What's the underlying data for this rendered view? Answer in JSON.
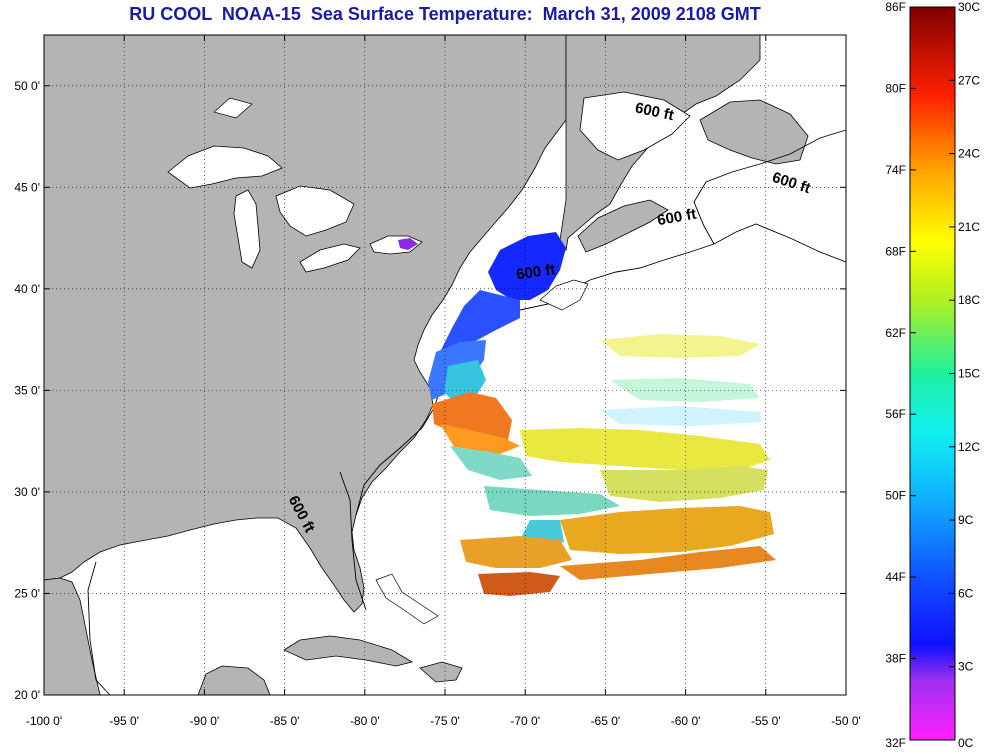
{
  "title": "RU COOL  NOAA-15  Sea Surface Temperature:  March 31, 2009 2108 GMT",
  "colors": {
    "title": "#1a1aa8",
    "land": "#b4b4b4",
    "ocean": "#ffffff",
    "frame": "#000000"
  },
  "map": {
    "lon_range": [
      -100,
      -50
    ],
    "lat_range": [
      20,
      52.5
    ],
    "lon_ticks": [
      -100,
      -95,
      -90,
      -85,
      -80,
      -75,
      -70,
      -65,
      -60,
      -55,
      -50
    ],
    "lat_ticks": [
      20,
      25,
      30,
      35,
      40,
      45,
      50
    ],
    "lon_tick_labels": [
      "-100 0'",
      "-95 0'",
      "-90 0'",
      "-85 0'",
      "-80 0'",
      "-75 0'",
      "-70 0'",
      "-65 0'",
      "-60 0'",
      "-55 0'",
      "-50 0'"
    ],
    "lat_tick_labels": [
      "20 0'",
      "25 0'",
      "30 0'",
      "35 0'",
      "40 0'",
      "45 0'",
      "50 0'"
    ],
    "grid": "dotted"
  },
  "isobath_labels": [
    {
      "text": "600 ft",
      "lon": -62.0,
      "lat": 48.5,
      "angle": 12
    },
    {
      "text": "600 ft",
      "lon": -53.5,
      "lat": 45.0,
      "angle": 18
    },
    {
      "text": "600 ft",
      "lon": -60.5,
      "lat": 43.3,
      "angle": -10
    },
    {
      "text": "600 ft",
      "lon": -69.3,
      "lat": 40.6,
      "angle": -8
    },
    {
      "text": "600 ft",
      "lon": -84.2,
      "lat": 28.8,
      "angle": 62
    }
  ],
  "colorbar": {
    "celsius_labels": [
      "0C",
      "3C",
      "6C",
      "9C",
      "12C",
      "15C",
      "18C",
      "21C",
      "24C",
      "27C",
      "30C"
    ],
    "fahrenheit_labels": [
      "32F",
      "38F",
      "44F",
      "50F",
      "56F",
      "62F",
      "68F",
      "74F",
      "80F",
      "86F"
    ],
    "celsius_range": [
      0,
      30
    ],
    "fahrenheit_range": [
      32,
      86
    ]
  }
}
